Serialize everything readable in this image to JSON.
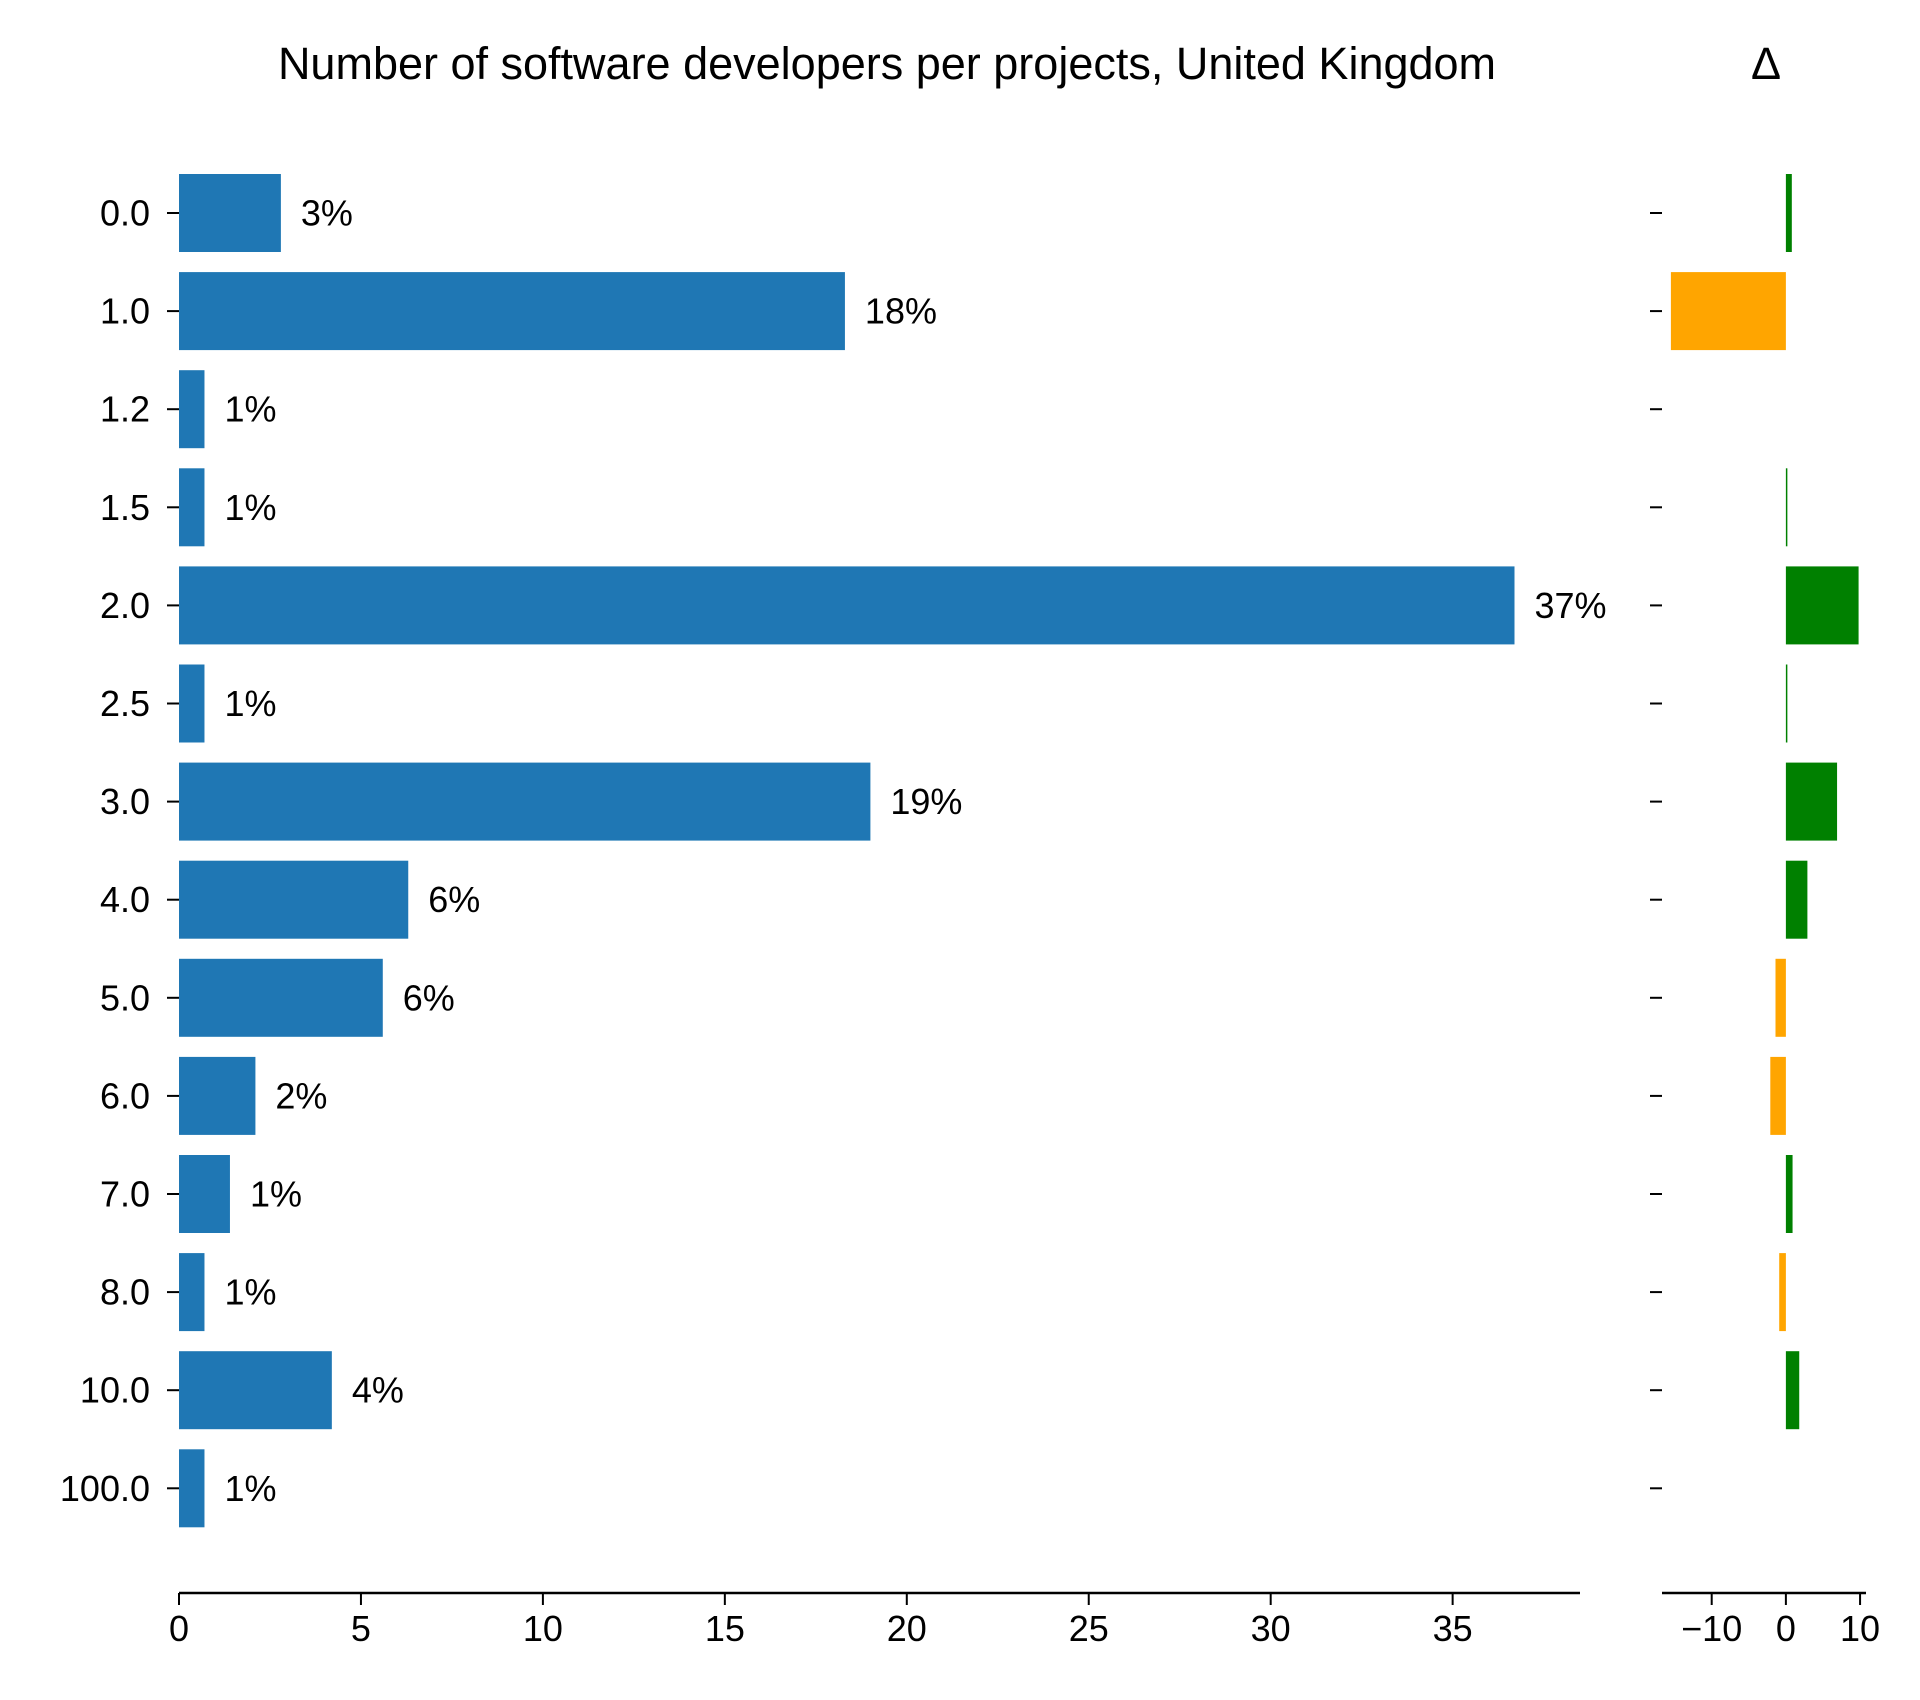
{
  "chart_data": [
    {
      "type": "bar",
      "orientation": "horizontal",
      "title": "Number of software developers per projects, United Kingdom",
      "xlabel": "",
      "ylabel": "",
      "categories": [
        "0.0",
        "1.0",
        "1.2",
        "1.5",
        "2.0",
        "2.5",
        "3.0",
        "4.0",
        "5.0",
        "6.0",
        "7.0",
        "8.0",
        "10.0",
        "100.0"
      ],
      "values": [
        2.8,
        18.3,
        0.7,
        0.7,
        36.7,
        0.7,
        19.0,
        6.3,
        5.6,
        2.1,
        1.4,
        0.7,
        4.2,
        0.7
      ],
      "data_labels": [
        "3%",
        "18%",
        "1%",
        "1%",
        "37%",
        "1%",
        "19%",
        "6%",
        "6%",
        "2%",
        "1%",
        "1%",
        "4%",
        "1%"
      ],
      "xlim": [
        0,
        38.5
      ],
      "xticks": [
        "0",
        "5",
        "10",
        "15",
        "20",
        "25",
        "30",
        "35"
      ],
      "grid": false,
      "color": "#1f77b4"
    },
    {
      "type": "bar",
      "orientation": "horizontal",
      "title": "Δ",
      "xlabel": "",
      "ylabel": "",
      "categories": [
        "0.0",
        "1.0",
        "1.2",
        "1.5",
        "2.0",
        "2.5",
        "3.0",
        "4.0",
        "5.0",
        "6.0",
        "7.0",
        "8.0",
        "10.0",
        "100.0"
      ],
      "values": [
        0.8,
        -15.5,
        0,
        0.2,
        9.8,
        0.2,
        6.9,
        2.9,
        -1.4,
        -2.1,
        0.9,
        -0.9,
        1.8,
        0
      ],
      "xlim": [
        -16.7,
        10.8
      ],
      "xticks": [
        "−10",
        "0",
        "10"
      ],
      "grid": false,
      "positive_color": "#008000",
      "negative_color": "#ffa500"
    }
  ]
}
